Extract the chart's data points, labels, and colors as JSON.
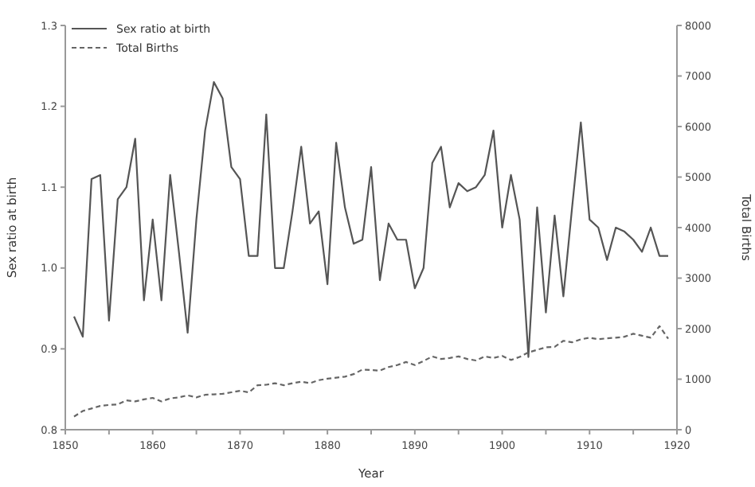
{
  "chart_data": {
    "type": "line",
    "xlabel": "Year",
    "ylabel": "Sex ratio at birth",
    "y2label": "Total Births",
    "x": [
      1851,
      1852,
      1853,
      1854,
      1855,
      1856,
      1857,
      1858,
      1859,
      1860,
      1861,
      1862,
      1863,
      1864,
      1865,
      1866,
      1867,
      1868,
      1869,
      1870,
      1871,
      1872,
      1873,
      1874,
      1875,
      1876,
      1877,
      1878,
      1879,
      1880,
      1881,
      1882,
      1883,
      1884,
      1885,
      1886,
      1887,
      1888,
      1889,
      1890,
      1891,
      1892,
      1893,
      1894,
      1895,
      1896,
      1897,
      1898,
      1899,
      1900,
      1901,
      1902,
      1903,
      1904,
      1905,
      1906,
      1907,
      1908,
      1909,
      1910,
      1911,
      1912,
      1913,
      1914,
      1915,
      1916,
      1917,
      1918,
      1919
    ],
    "series": [
      {
        "name": "Sex ratio at birth",
        "color": "#555555",
        "line_style": "solid",
        "values": [
          0.94,
          0.915,
          1.11,
          1.115,
          0.935,
          1.085,
          1.1,
          1.16,
          0.96,
          1.06,
          0.96,
          1.115,
          1.02,
          0.92,
          1.06,
          1.17,
          1.23,
          1.21,
          1.125,
          1.11,
          1.015,
          1.015,
          1.19,
          1.0,
          1.0,
          1.07,
          1.15,
          1.055,
          1.07,
          0.98,
          1.155,
          1.075,
          1.03,
          1.035,
          1.125,
          0.985,
          1.055,
          1.035,
          1.035,
          0.975,
          1.0,
          1.13,
          1.15,
          1.075,
          1.105,
          1.095,
          1.1,
          1.115,
          1.17,
          1.05,
          1.115,
          1.06,
          0.89,
          1.075,
          0.945,
          1.065,
          0.965,
          1.075,
          1.18,
          1.06,
          1.05,
          1.01,
          1.05,
          1.045,
          1.035,
          1.02,
          1.05,
          1.015,
          1.015
        ]
      },
      {
        "name": "Total Births",
        "color": "#666666",
        "line_style": "dashed",
        "axis": "y2",
        "values": [
          260,
          370,
          420,
          470,
          490,
          500,
          580,
          560,
          600,
          630,
          560,
          620,
          640,
          680,
          640,
          690,
          700,
          710,
          740,
          770,
          740,
          880,
          890,
          920,
          880,
          920,
          950,
          920,
          980,
          1010,
          1030,
          1050,
          1100,
          1190,
          1180,
          1170,
          1240,
          1280,
          1340,
          1280,
          1360,
          1450,
          1400,
          1420,
          1450,
          1400,
          1370,
          1450,
          1420,
          1460,
          1380,
          1440,
          1530,
          1580,
          1630,
          1640,
          1760,
          1730,
          1790,
          1820,
          1790,
          1810,
          1820,
          1840,
          1900,
          1860,
          1820,
          2050,
          1800
        ]
      }
    ],
    "xlim": [
      1850,
      1920
    ],
    "xticks": [
      1850,
      {
        "value": 1855,
        "label": null
      },
      1860,
      {
        "value": 1865,
        "label": null
      },
      1870,
      {
        "value": 1875,
        "label": null
      },
      1880,
      {
        "value": 1885,
        "label": null
      },
      1890,
      {
        "value": 1895,
        "label": null
      },
      1900,
      {
        "value": 1905,
        "label": null
      },
      1910,
      {
        "value": 1915,
        "label": null
      },
      1920
    ],
    "ylim": [
      0.8,
      1.3
    ],
    "yticks": [
      0.8,
      0.9,
      {
        "value": 1,
        "label": "1.0"
      },
      1.1,
      1.2,
      1.3
    ],
    "y2lim": [
      0,
      8000
    ],
    "y2ticks": [
      0,
      1000,
      2000,
      3000,
      4000,
      5000,
      6000,
      7000,
      8000
    ],
    "legend": "top left",
    "grid": false
  }
}
